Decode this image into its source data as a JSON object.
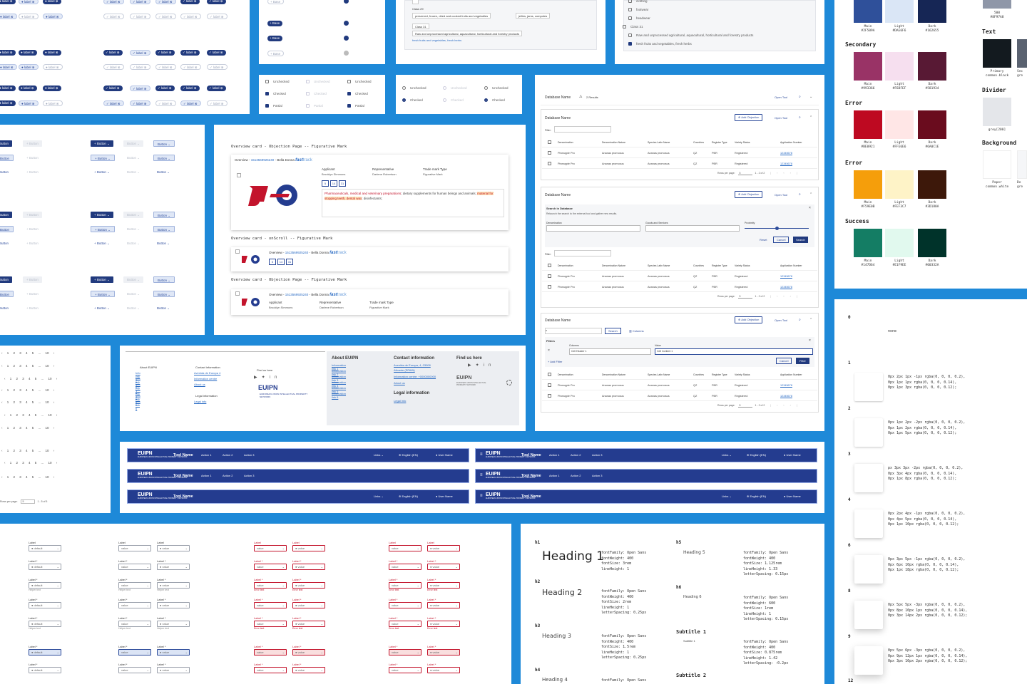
{
  "chips": {
    "label": "label"
  },
  "base_buttons": {
    "base": "Base"
  },
  "checkbox_classes": {
    "class29": "Class 29",
    "class29_text": "preserved, frozen, dried and cooked fruits and vegetables",
    "class29_extra": "jellies, jams, compotes",
    "class31": "Class 31",
    "class31_text": "Raw and unprocessed agricultural, aquacultural, horticultural and forestry products",
    "class31_link": "fresh fruits and vegetables, fresh herbs",
    "right_items": [
      "clothing",
      "footwear",
      "headwear"
    ],
    "right_class31": "Class 31",
    "right_class31_text": "Raw and unprocessed agricultural, aquacultural, horticultural and forestry products",
    "right_link": "fresh fruits and vegetables, fresh herbs"
  },
  "palette": {
    "top": [
      {
        "name": "Main",
        "hex": "#2F509A",
        "color": "#2f509a"
      },
      {
        "name": "Light",
        "hex": "#DAE6F6",
        "color": "#dae6f6"
      },
      {
        "name": "Dark",
        "hex": "#162655",
        "color": "#162655"
      }
    ],
    "grey500": {
      "name": "500",
      "hex": "#8F97A8",
      "color": "#8f97a8"
    },
    "text_label": "Text",
    "text_primary": {
      "name": "Primary",
      "sub": "common.black",
      "color": "#131a1f"
    },
    "text_second": {
      "name": "Sec",
      "sub": "gre"
    },
    "divider_label": "Divider",
    "divider": {
      "name": "grey[200]",
      "color": "#e4e6ea"
    },
    "background_label": "Background",
    "background": {
      "name": "Paper",
      "sub": "common.white"
    },
    "background2": {
      "name": "De",
      "sub": "gre"
    },
    "groups": [
      {
        "title": "Secondary",
        "swatches": [
          {
            "name": "Main",
            "hex": "#993366",
            "color": "#993366"
          },
          {
            "name": "Light",
            "hex": "#F6DFEF",
            "color": "#f6dfef"
          },
          {
            "name": "Dark",
            "hex": "#581934",
            "color": "#581934"
          }
        ]
      },
      {
        "title": "Error",
        "swatches": [
          {
            "name": "Main",
            "hex": "#BE0921",
            "color": "#be0921"
          },
          {
            "name": "Light",
            "hex": "#FFE6E6",
            "color": "#ffe6e6"
          },
          {
            "name": "Dark",
            "hex": "#6A0C1E",
            "color": "#6a0c1e"
          }
        ]
      },
      {
        "title": "Error",
        "swatches": [
          {
            "name": "Main",
            "hex": "#F59E0B",
            "color": "#f59e0b"
          },
          {
            "name": "Light",
            "hex": "#FEF3C7",
            "color": "#fef3c7"
          },
          {
            "name": "Dark",
            "hex": "#3D180A",
            "color": "#3d180a"
          }
        ]
      },
      {
        "title": "Success",
        "swatches": [
          {
            "name": "Main",
            "hex": "#147D64",
            "color": "#147d64"
          },
          {
            "name": "Light",
            "hex": "#E1F9EE",
            "color": "#e1f9ee"
          },
          {
            "name": "Dark",
            "hex": "#00332A",
            "color": "#00332a"
          }
        ]
      }
    ]
  },
  "checkboxes": {
    "unchecked": "Unchecked",
    "checked": "Checked",
    "partial": "Partial"
  },
  "buttons": {
    "button": "Button"
  },
  "overview": {
    "t1": "Overview card - Objection Page -- Figurative Mark",
    "t2": "Overview card - onScroll -- Figurative Mark",
    "t3": "Overview card - Objection Page -- Figurative Mark",
    "overview": "Overview",
    "number": "1513569925240",
    "owner": "Bella Donna",
    "fast": "fast",
    "track": "track",
    "applicant_label": "Applicant",
    "applicant": "Brooklyn Simmons",
    "rep_label": "Representative",
    "rep": "Darlene Robertson",
    "type_label": "Trade mark Type",
    "type": "Figurative Mark",
    "classes": [
      "5",
      "14",
      "31"
    ],
    "desc_a": "Pharmaceuticals, medical and veterinary preparations",
    "desc_b": "; dietary supplements for human beings and animals;",
    "desc_c": "material for stopping teeth, dental wax",
    "desc_d": "; disinfectants;"
  },
  "database": {
    "name": "Database Name",
    "results": "2 Results",
    "open_tool": "Open Tool",
    "add_objection": "Add Objection",
    "filter": "Filter:",
    "search_in_db": "Search in Database",
    "relaunch": "Relaunch the search to the external tool and gather new results.",
    "denomination": "Denomination",
    "goods": "Goods and Services",
    "proximity": "Proximity",
    "reset": "Reset",
    "cancel": "Cancel",
    "search": "Search",
    "columns": "Columns",
    "filters": "Filters",
    "col_header": "Cell Header 1",
    "value_label": "Value",
    "value": "Cell Content 1",
    "add_filter": "Add Filter",
    "filter_btn": "Filter",
    "headers": [
      "Denomination",
      "Denomination Nature",
      "Species Latin Name",
      "Countries",
      "Register Type",
      "Variety Status",
      "Application Number"
    ],
    "row": [
      "Pineapple Pro",
      "Ananas promosus",
      "Ananas promosus",
      "QZ",
      "PBR",
      "Registered",
      "12345678"
    ],
    "rows_per_page": "Rows per page:",
    "rpp_value": "5",
    "range": "1 - 2 of 2"
  },
  "pagination": {
    "row1": "1 2 3 4 5 ... 10",
    "row2": "1 2 3 4 5 ... 10",
    "row3": "1 2 3 4 5 ... 10",
    "row4": "1 2 3 4 5 ... 10",
    "rows_label": "Rows per page:",
    "rows_value": "5",
    "range": "1 - 5 of 5"
  },
  "footer": {
    "about": "About EUIPN",
    "contact": "Contact information",
    "find_us": "Find us here",
    "legal": "Legal information",
    "legal_link": "Legal info",
    "info_links": [
      "Info link 1",
      "Info link 2",
      "Info link 3",
      "Info link 4",
      "Info link 5",
      "Info link 6"
    ],
    "information_links": [
      "Information link 1",
      "Information link 2",
      "Information link 3",
      "Information link 4",
      "Information link 5",
      "Information link 6"
    ],
    "address1": "Avenida de Europa, 4, 03008",
    "address2": "Alicante (SPAIN)",
    "info_centre": "Information centre: +0000000000",
    "about_us": "About us",
    "avenida": "Avenida de Europa 4",
    "info_centre_short": "Information centre",
    "logo": "EUIPN",
    "logo_sub": "EUROPEAN UNION INTELLECTUAL PROPERTY NETWORK"
  },
  "app_header": {
    "logo": "EUIPN",
    "logo_sub": "EUROPEAN UNION INTELLECTUAL PROPERTY NETWORK",
    "tool_name": "Tool Name",
    "actions": [
      "Action 1",
      "Action 2",
      "Action 3"
    ],
    "links": "Links",
    "language": "English (EN)",
    "user": "User Name"
  },
  "fields": {
    "label": "Label",
    "label_req": "Label *",
    "default": "default",
    "value": "value",
    "helper": "Helper text",
    "error": "Error text"
  },
  "typography": {
    "h1": "h1",
    "h1_sample": "Heading 1",
    "h1_spec": "fontFamily: Open Sans\nfontWeight: 400\nfontSize: 3rem\nlineHeight: 1",
    "h2": "h2",
    "h2_sample": "Heading 2",
    "h2_spec": "fontFamily: Open Sans\nfontWeight: 400\nfontSize: 2rem\nlineHeight: 1\nletterSpacing: 0.25px",
    "h3": "h3",
    "h3_sample": "Heading 3",
    "h3_spec": "fontFamily: Open Sans\nfontWeight: 400\nfontSize: 1.5rem\nlineHeight: 1\nletterSpacing: 0.25px",
    "h4": "h4",
    "h4_sample": "Heading 4",
    "h4_spec": "fontFamily: Open Sans",
    "h5": "h5",
    "h5_sample": "Heading 5",
    "h5_spec": "fontFamily: Open Sans\nfontWeight: 400\nfontSize: 1.125rem\nlineHeight: 1.33\nletterSpacing: 0.15px",
    "h6": "h6",
    "h6_sample": "Heading 6",
    "h6_spec": "fontFamily: Open Sans\nfontWeight: 600\nfontSize: 1rem\nlineHeight: 1\nletterSpacing: 0.15px",
    "sub1": "Subtitle 1",
    "sub1_sample": "Subtitle 1",
    "sub1_spec": "fontFamily: Open Sans\nfontWeight: 400\nfontSize: 0.875rem\nlineHeight: 1.42\nletterSpacing: -0.2px",
    "sub2": "Subtitle 2"
  },
  "shadows": {
    "items": [
      {
        "level": "0",
        "spec": "none"
      },
      {
        "level": "1",
        "spec": "0px 2px 1px -1px rgba(0, 0, 0, 0.2),\n0px 1px 1px rgba(0, 0, 0, 0.14),\n0px 1px 3px rgba(0, 0, 0, 0.12);"
      },
      {
        "level": "2",
        "spec": "0px 1px 2px -2px rgba(0, 0, 0, 0.2),\n0px 1px 2px rgba(0, 0, 0, 0.14),\n0px 1px 5px rgba(0, 0, 0, 0.12);"
      },
      {
        "level": "3",
        "spec": "px 3px 3px -2px rgba(0, 0, 0, 0.2),\n0px 3px 4px rgba(0, 0, 0, 0.14),\n0px 1px 8px rgba(0, 0, 0, 0.12);"
      },
      {
        "level": "4",
        "spec": "0px 2px 4px -1px rgba(0, 0, 0, 0.2),\n0px 4px 5px rgba(0, 0, 0, 0.14),\n0px 1px 10px rgba(0, 0, 0, 0.12);"
      },
      {
        "level": "6",
        "spec": "0px 3px 5px -1px rgba(0, 0, 0, 0.2),\n0px 6px 10px rgba(0, 0, 0, 0.14),\n0px 1px 18px rgba(0, 0, 0, 0.12);"
      },
      {
        "level": "8",
        "spec": "0px 5px 5px -3px rgba(0, 0, 0, 0.2),\n0px 8px 10px 1px rgba(0, 0, 0, 0.14),\n0px 3px 14px 2px rgba(0, 0, 0, 0.12);"
      },
      {
        "level": "9",
        "spec": "0px 5px 6px -3px rgba(0, 0, 0, 0.2),\n0px 9px 12px 1px rgba(0, 0, 0, 0.14),\n0px 3px 16px 2px rgba(0, 0, 0, 0.12);"
      },
      {
        "level": "12",
        "spec": ""
      }
    ]
  }
}
